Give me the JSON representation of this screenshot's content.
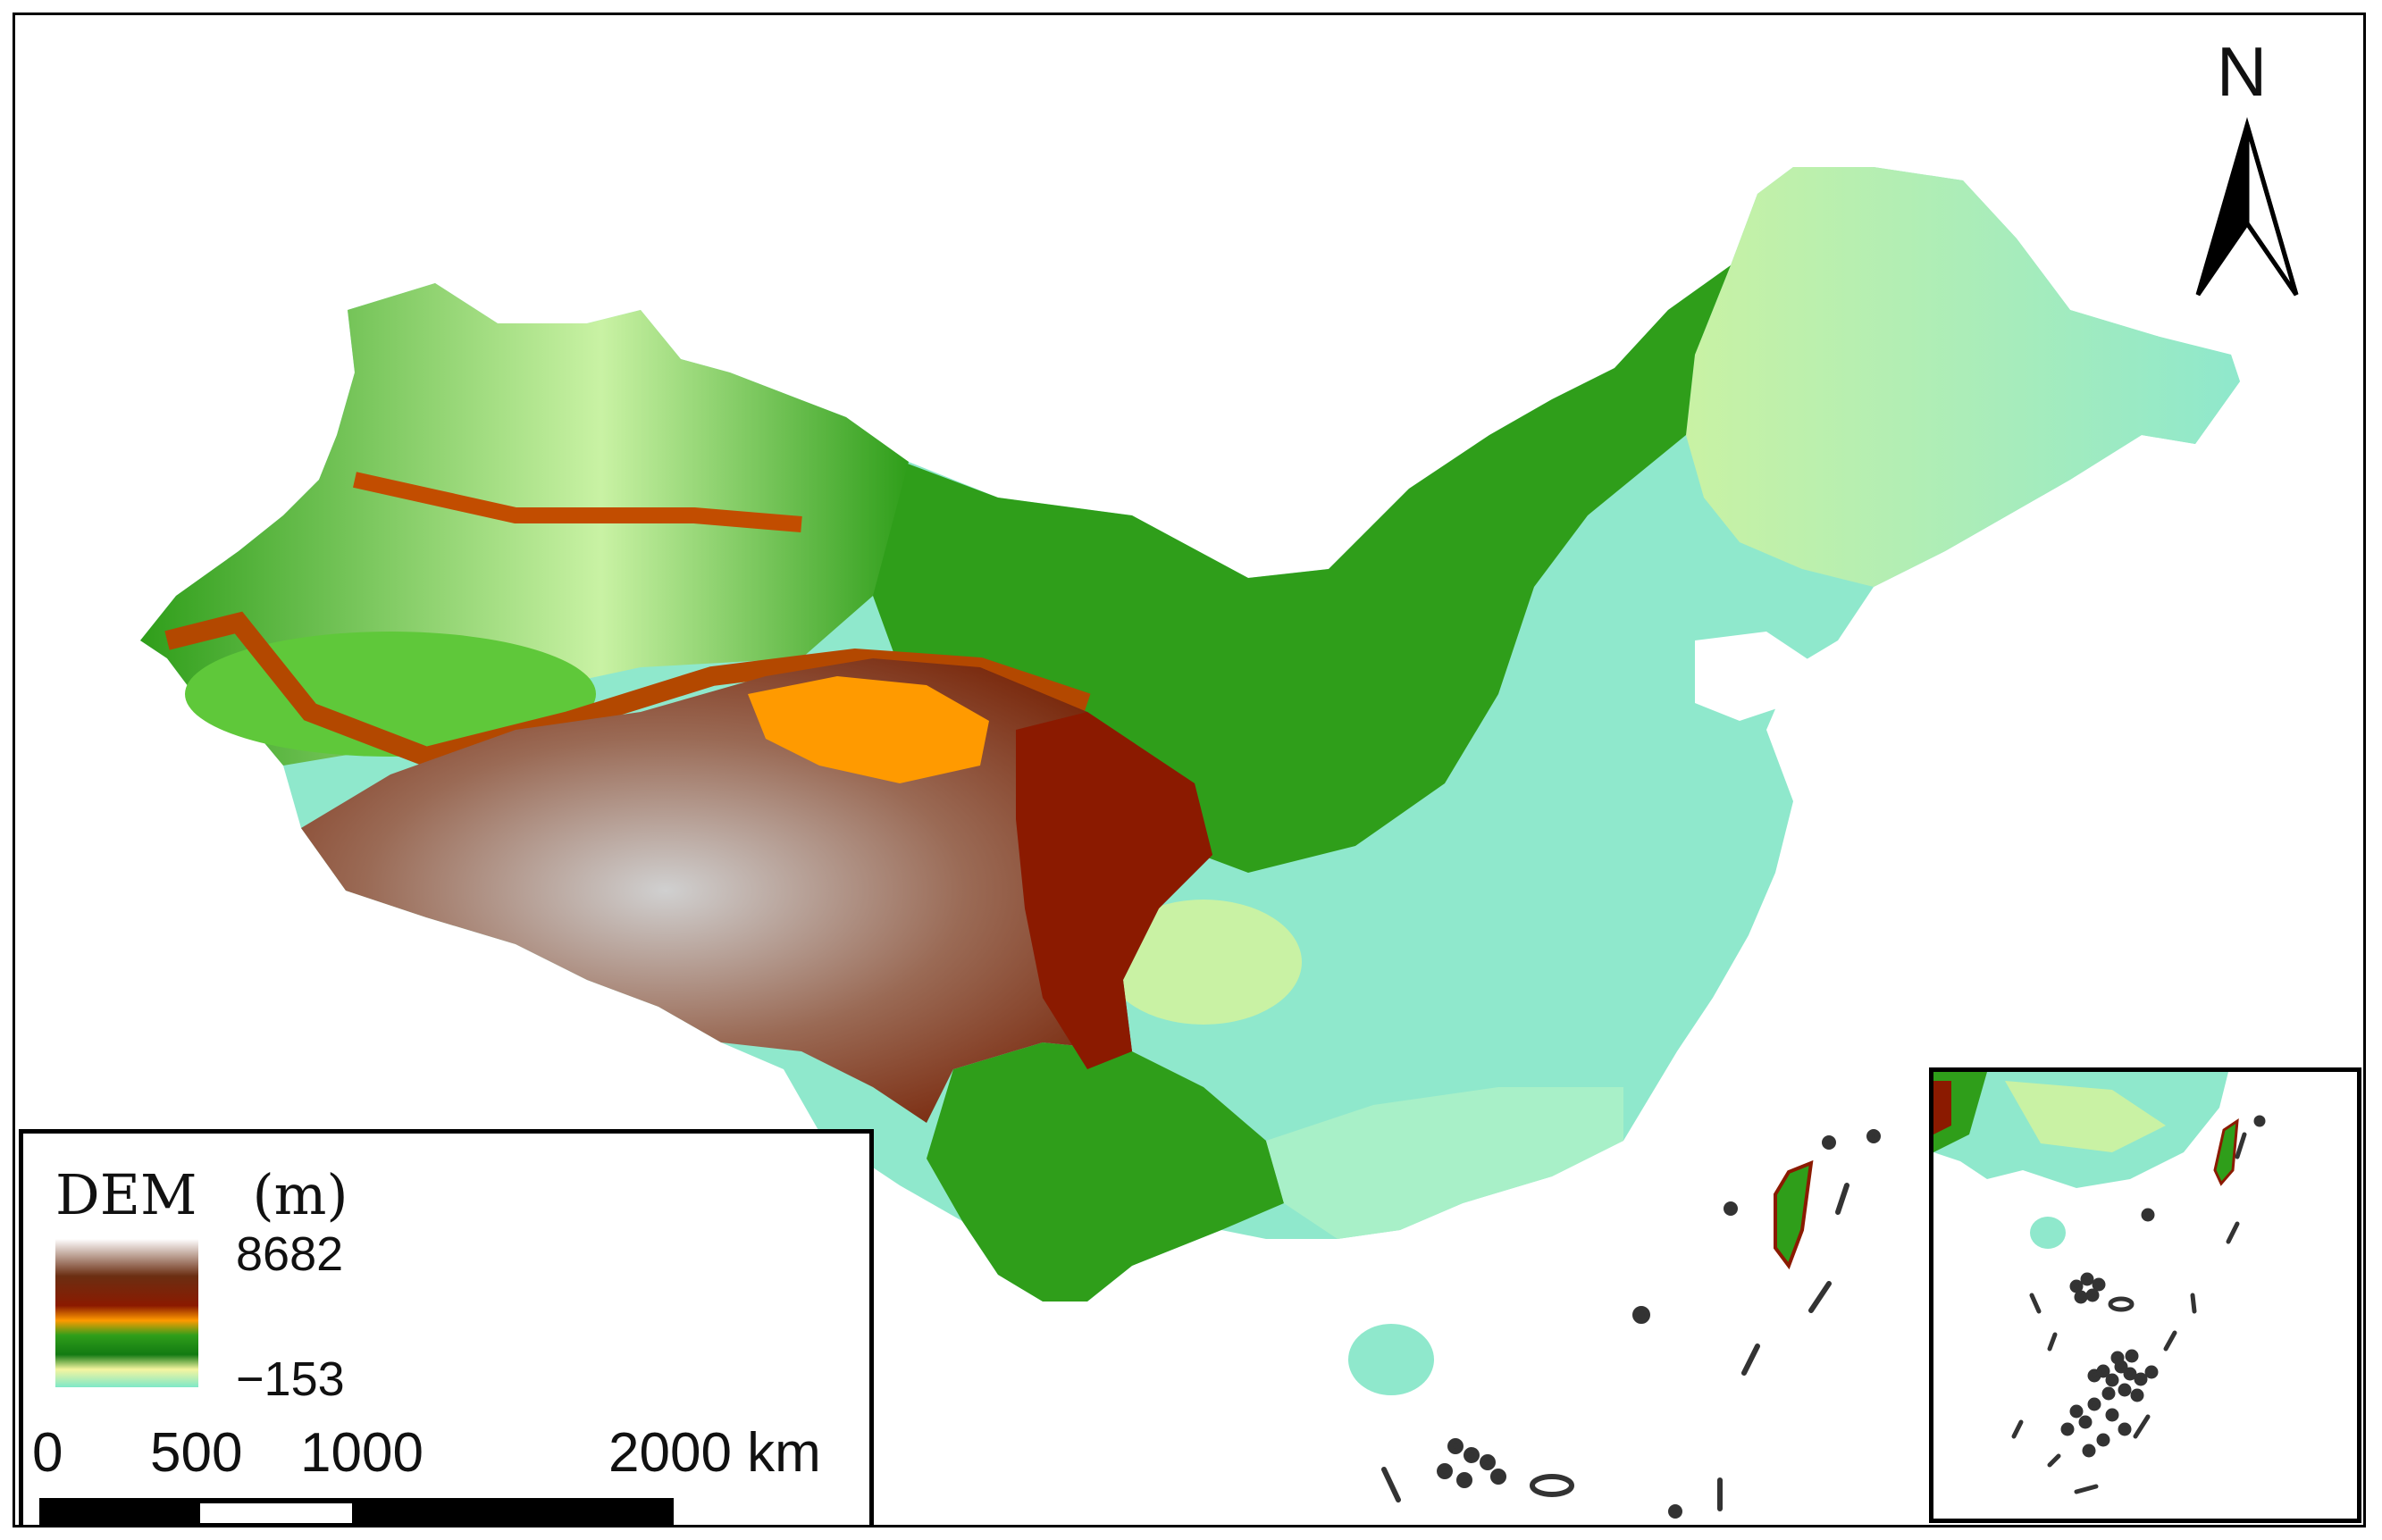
{
  "legend": {
    "title": "DEM　(m)",
    "max": "8682",
    "min": "−153",
    "colors": [
      "#ffffff",
      "#6b2e12",
      "#8b1a00",
      "#ff9a00",
      "#2f9e1a",
      "#127a12",
      "#f5f5a0",
      "#7ee8c8"
    ]
  },
  "scale_bar": {
    "labels": [
      "0",
      "500",
      "1000",
      "2000 km"
    ]
  },
  "north_arrow": {
    "label": "N"
  },
  "map_colors": {
    "lowland": "#8fe8cc",
    "plain": "#c9f2a4",
    "hill": "#2f9e1a",
    "mountain": "#8b1a00",
    "plateau": "#7a3a1c",
    "peak": "#d8d8d8",
    "basin": "#ff9a00"
  }
}
